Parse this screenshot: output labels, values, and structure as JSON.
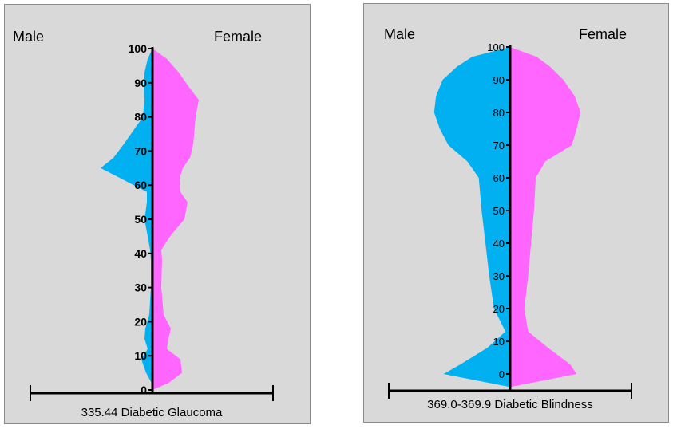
{
  "colors": {
    "male": "#00b0f0",
    "female": "#ff66ff",
    "axis": "#000000",
    "panel": "#d9d9d9"
  },
  "chart_data": [
    {
      "type": "area",
      "subtype": "population-pyramid",
      "title": "",
      "xlabel": "335.44 Diabetic Glaucoma",
      "ylabel": "",
      "left_label": "Male",
      "right_label": "Female",
      "ylim": [
        0,
        100
      ],
      "yticks": [
        "0",
        "10",
        "20",
        "30",
        "40",
        "50",
        "60",
        "70",
        "80",
        "90",
        "100"
      ],
      "y": [
        0,
        2,
        5,
        9,
        12,
        15,
        18,
        22,
        30,
        38,
        41,
        45,
        50,
        55,
        58,
        62,
        65,
        68,
        72,
        80,
        85,
        89,
        93,
        97,
        100
      ],
      "series": [
        {
          "name": "Male",
          "values": [
            0,
            1,
            8,
            14,
            6,
            10,
            9,
            4,
            2,
            2,
            3,
            6,
            10,
            7,
            7,
            40,
            65,
            49,
            36,
            12,
            10,
            11,
            10,
            6,
            0
          ]
        },
        {
          "name": "Female",
          "values": [
            0,
            20,
            37,
            35,
            18,
            20,
            23,
            14,
            11,
            12,
            11,
            22,
            40,
            44,
            35,
            34,
            38,
            47,
            51,
            54,
            58,
            45,
            33,
            18,
            0
          ]
        }
      ]
    },
    {
      "type": "area",
      "subtype": "population-pyramid",
      "title": "",
      "xlabel": "369.0-369.9 Diabetic Blindness",
      "ylabel": "",
      "left_label": "Male",
      "right_label": "Female",
      "ylim": [
        0,
        100
      ],
      "yticks": [
        "0",
        "10",
        "20",
        "30",
        "40",
        "50",
        "60",
        "70",
        "80",
        "90",
        "100"
      ],
      "y": [
        -4,
        0,
        3,
        8,
        13,
        20,
        30,
        40,
        50,
        60,
        65,
        70,
        75,
        80,
        85,
        90,
        94,
        97,
        100
      ],
      "series": [
        {
          "name": "Male",
          "values": [
            0,
            70,
            52,
            24,
            5,
            17,
            22,
            26,
            30,
            33,
            45,
            65,
            74,
            80,
            78,
            71,
            56,
            40,
            0
          ]
        },
        {
          "name": "Female",
          "values": [
            0,
            70,
            63,
            40,
            19,
            15,
            19,
            22,
            25,
            27,
            37,
            65,
            70,
            74,
            68,
            56,
            42,
            28,
            0
          ]
        }
      ]
    }
  ]
}
